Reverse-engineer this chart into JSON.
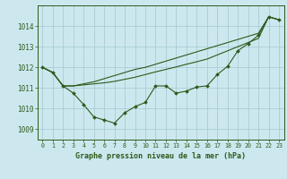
{
  "title": "Graphe pression niveau de la mer (hPa)",
  "background_color": "#cce8ee",
  "grid_color": "#aaccd4",
  "line_color": "#2d5a1b",
  "ylim": [
    1008.5,
    1015.0
  ],
  "xlim": [
    -0.5,
    23.5
  ],
  "yticks": [
    1009,
    1010,
    1011,
    1012,
    1013,
    1014
  ],
  "xticks": [
    0,
    1,
    2,
    3,
    4,
    5,
    6,
    7,
    8,
    9,
    10,
    11,
    12,
    13,
    14,
    15,
    16,
    17,
    18,
    19,
    20,
    21,
    22,
    23
  ],
  "series_main": [
    1012.0,
    1011.75,
    1011.1,
    1010.75,
    1010.2,
    1009.6,
    1009.45,
    1009.3,
    1009.8,
    1010.1,
    1010.3,
    1011.1,
    1011.1,
    1010.75,
    1010.85,
    1011.05,
    1011.1,
    1011.65,
    1012.05,
    1012.8,
    1013.15,
    1013.55,
    1014.45,
    1014.3
  ],
  "series_line1": [
    1012.0,
    1011.75,
    1011.1,
    1011.1,
    1011.2,
    1011.3,
    1011.45,
    1011.6,
    1011.75,
    1011.9,
    1012.0,
    1012.15,
    1012.3,
    1012.45,
    1012.6,
    1012.75,
    1012.9,
    1013.05,
    1013.2,
    1013.35,
    1013.5,
    1013.65,
    1014.45,
    1014.3
  ],
  "series_line2": [
    1012.0,
    1011.75,
    1011.1,
    1011.1,
    1011.15,
    1011.2,
    1011.25,
    1011.32,
    1011.42,
    1011.52,
    1011.65,
    1011.78,
    1011.9,
    1012.02,
    1012.15,
    1012.27,
    1012.4,
    1012.6,
    1012.8,
    1013.0,
    1013.2,
    1013.4,
    1014.45,
    1014.3
  ]
}
